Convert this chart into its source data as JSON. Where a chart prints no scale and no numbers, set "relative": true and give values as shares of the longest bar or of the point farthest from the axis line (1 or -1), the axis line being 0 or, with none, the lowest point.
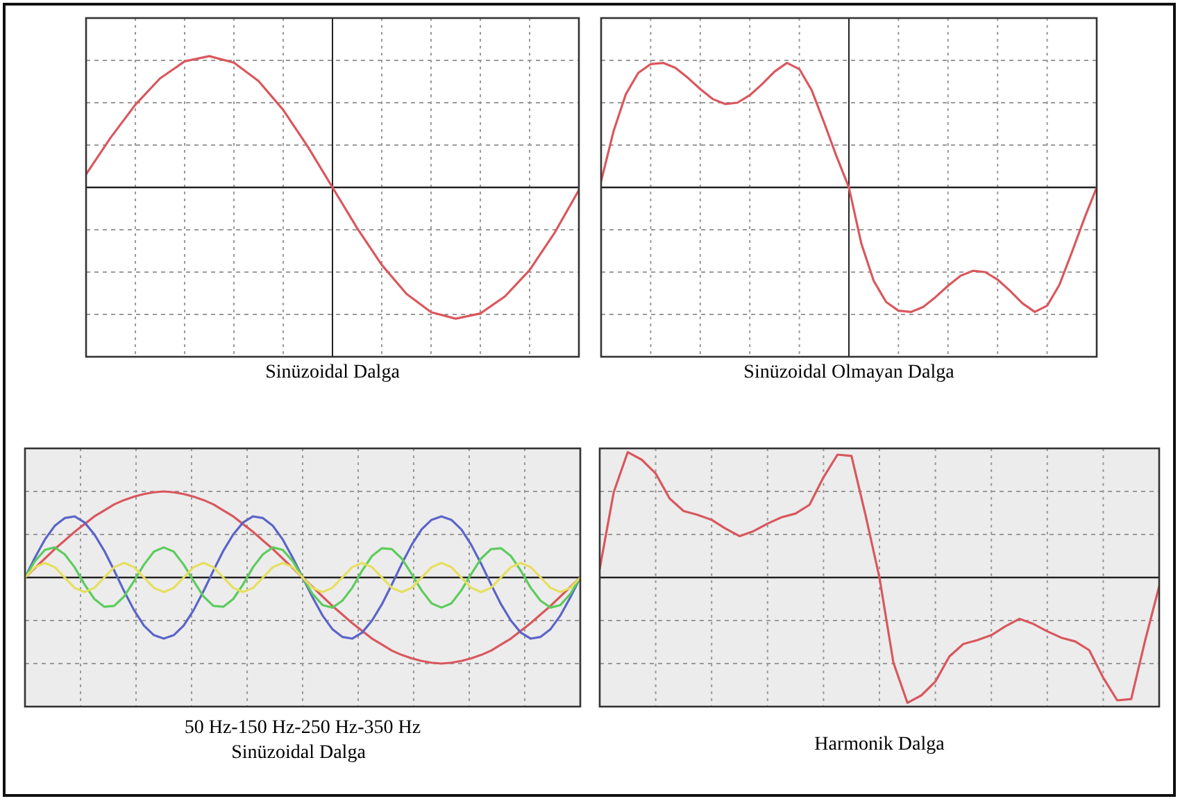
{
  "chart_data": [
    {
      "type": "line",
      "title": "Sinüzoidal Dalga",
      "relative": true,
      "grid": true,
      "categories": [
        null,
        null,
        null,
        null,
        null,
        null,
        null,
        null,
        null,
        null,
        null,
        null,
        null,
        null,
        null,
        null,
        null,
        null,
        null,
        null,
        null
      ],
      "series": [
        {
          "color": "#d9575d",
          "values": [
            0.1,
            0.38,
            0.63,
            0.83,
            0.96,
            1,
            0.95,
            0.81,
            0.59,
            0.31,
            0,
            -0.31,
            -0.59,
            -0.81,
            -0.95,
            -1,
            -0.96,
            -0.83,
            -0.63,
            -0.35,
            -0.02
          ]
        }
      ]
    },
    {
      "type": "line",
      "title": "Sinüzoidal Olmayan Dalga",
      "relative": true,
      "grid": true,
      "categories": [
        null,
        null,
        null,
        null,
        null,
        null,
        null,
        null,
        null,
        null,
        null,
        null,
        null,
        null,
        null,
        null,
        null,
        null,
        null,
        null,
        null,
        null,
        null,
        null,
        null,
        null,
        null,
        null,
        null,
        null,
        null,
        null,
        null,
        null,
        null,
        null,
        null,
        null,
        null,
        null,
        null
      ],
      "series": [
        {
          "color": "#d9575d",
          "values": [
            0.05,
            0.45,
            0.75,
            0.92,
            0.99,
            1,
            0.96,
            0.88,
            0.79,
            0.71,
            0.67,
            0.68,
            0.74,
            0.83,
            0.93,
            1,
            0.95,
            0.78,
            0.52,
            0.25,
            0,
            -0.45,
            -0.75,
            -0.92,
            -0.99,
            -1,
            -0.96,
            -0.88,
            -0.79,
            -0.71,
            -0.67,
            -0.68,
            -0.74,
            -0.83,
            -0.93,
            -1,
            -0.95,
            -0.78,
            -0.52,
            -0.25,
            0
          ]
        }
      ]
    },
    {
      "type": "line",
      "title": "50 Hz-150 Hz-250 Hz-350 Hz",
      "subtitle": "Sinüzoidal Dalga",
      "relative": true,
      "grid": true,
      "categories": [
        null,
        null,
        null,
        null,
        null,
        null,
        null,
        null,
        null,
        null,
        null,
        null,
        null,
        null,
        null,
        null,
        null,
        null,
        null,
        null,
        null,
        null,
        null,
        null,
        null,
        null,
        null,
        null,
        null,
        null,
        null,
        null,
        null,
        null,
        null,
        null,
        null,
        null,
        null,
        null,
        null,
        null,
        null,
        null,
        null,
        null,
        null,
        null,
        null,
        null,
        null,
        null,
        null,
        null,
        null,
        null,
        null
      ],
      "series": [
        {
          "color": "#d9575d",
          "values": [
            0,
            0.11,
            0.22,
            0.33,
            0.43,
            0.53,
            0.62,
            0.71,
            0.78,
            0.85,
            0.9,
            0.94,
            0.97,
            0.99,
            1,
            0.99,
            0.97,
            0.94,
            0.9,
            0.85,
            0.78,
            0.71,
            0.62,
            0.53,
            0.43,
            0.33,
            0.22,
            0.11,
            0,
            -0.11,
            -0.22,
            -0.33,
            -0.43,
            -0.53,
            -0.62,
            -0.71,
            -0.78,
            -0.85,
            -0.9,
            -0.94,
            -0.97,
            -0.99,
            -1,
            -0.99,
            -0.97,
            -0.94,
            -0.9,
            -0.85,
            -0.78,
            -0.71,
            -0.62,
            -0.53,
            -0.43,
            -0.33,
            -0.22,
            -0.11,
            0
          ]
        },
        {
          "color": "#5a64c8",
          "values": [
            0,
            0.23,
            0.44,
            0.6,
            0.69,
            0.71,
            0.64,
            0.5,
            0.31,
            0.08,
            -0.16,
            -0.38,
            -0.56,
            -0.67,
            -0.71,
            -0.67,
            -0.56,
            -0.38,
            -0.16,
            0.08,
            0.31,
            0.5,
            0.64,
            0.71,
            0.69,
            0.6,
            0.44,
            0.23,
            0,
            -0.23,
            -0.44,
            -0.6,
            -0.69,
            -0.71,
            -0.64,
            -0.5,
            -0.31,
            -0.08,
            0.16,
            0.38,
            0.56,
            0.67,
            0.71,
            0.67,
            0.56,
            0.38,
            0.16,
            -0.08,
            -0.31,
            -0.5,
            -0.64,
            -0.71,
            -0.69,
            -0.6,
            -0.44,
            -0.23,
            0
          ]
        },
        {
          "color": "#5ccc5c",
          "values": [
            0,
            0.19,
            0.32,
            0.35,
            0.27,
            0.12,
            -0.08,
            -0.25,
            -0.34,
            -0.33,
            -0.22,
            -0.04,
            0.15,
            0.3,
            0.35,
            0.3,
            0.15,
            -0.04,
            -0.22,
            -0.33,
            -0.34,
            -0.25,
            -0.08,
            0.12,
            0.27,
            0.35,
            0.32,
            0.19,
            0,
            -0.19,
            -0.32,
            -0.35,
            -0.27,
            -0.12,
            0.08,
            0.25,
            0.34,
            0.33,
            0.22,
            0.04,
            -0.15,
            -0.3,
            -0.35,
            -0.3,
            -0.15,
            0.04,
            0.22,
            0.33,
            0.34,
            0.25,
            0.08,
            -0.12,
            -0.27,
            -0.35,
            -0.32,
            -0.19,
            0
          ]
        },
        {
          "color": "#e6df5c",
          "values": [
            0,
            0.12,
            0.17,
            0.12,
            0,
            -0.12,
            -0.17,
            -0.12,
            0,
            0.12,
            0.17,
            0.12,
            0,
            -0.12,
            -0.17,
            -0.12,
            0,
            0.12,
            0.17,
            0.12,
            0,
            -0.12,
            -0.17,
            -0.12,
            0,
            0.12,
            0.17,
            0.12,
            0,
            -0.12,
            -0.17,
            -0.12,
            0,
            0.12,
            0.17,
            0.12,
            0,
            -0.12,
            -0.17,
            -0.12,
            0,
            0.12,
            0.17,
            0.12,
            0,
            -0.12,
            -0.17,
            -0.12,
            0,
            0.12,
            0.17,
            0.12,
            0,
            -0.12,
            -0.17,
            -0.12,
            0
          ]
        }
      ]
    },
    {
      "type": "line",
      "title": "Harmonik Dalga",
      "relative": true,
      "grid": true,
      "categories": [
        null,
        null,
        null,
        null,
        null,
        null,
        null,
        null,
        null,
        null,
        null,
        null,
        null,
        null,
        null,
        null,
        null,
        null,
        null,
        null,
        null,
        null,
        null,
        null,
        null,
        null,
        null,
        null,
        null,
        null,
        null,
        null,
        null,
        null,
        null,
        null,
        null,
        null,
        null,
        null,
        null
      ],
      "series": [
        {
          "color": "#d9575d",
          "values": [
            0.07,
            0.68,
            1,
            0.94,
            0.83,
            0.63,
            0.53,
            0.5,
            0.46,
            0.39,
            0.33,
            0.37,
            0.43,
            0.48,
            0.51,
            0.58,
            0.8,
            0.98,
            0.97,
            0.5,
            0,
            -0.68,
            -1,
            -0.94,
            -0.83,
            -0.63,
            -0.53,
            -0.5,
            -0.46,
            -0.39,
            -0.33,
            -0.37,
            -0.43,
            -0.48,
            -0.51,
            -0.58,
            -0.8,
            -0.98,
            -0.97,
            -0.5,
            -0.07
          ]
        }
      ]
    }
  ]
}
